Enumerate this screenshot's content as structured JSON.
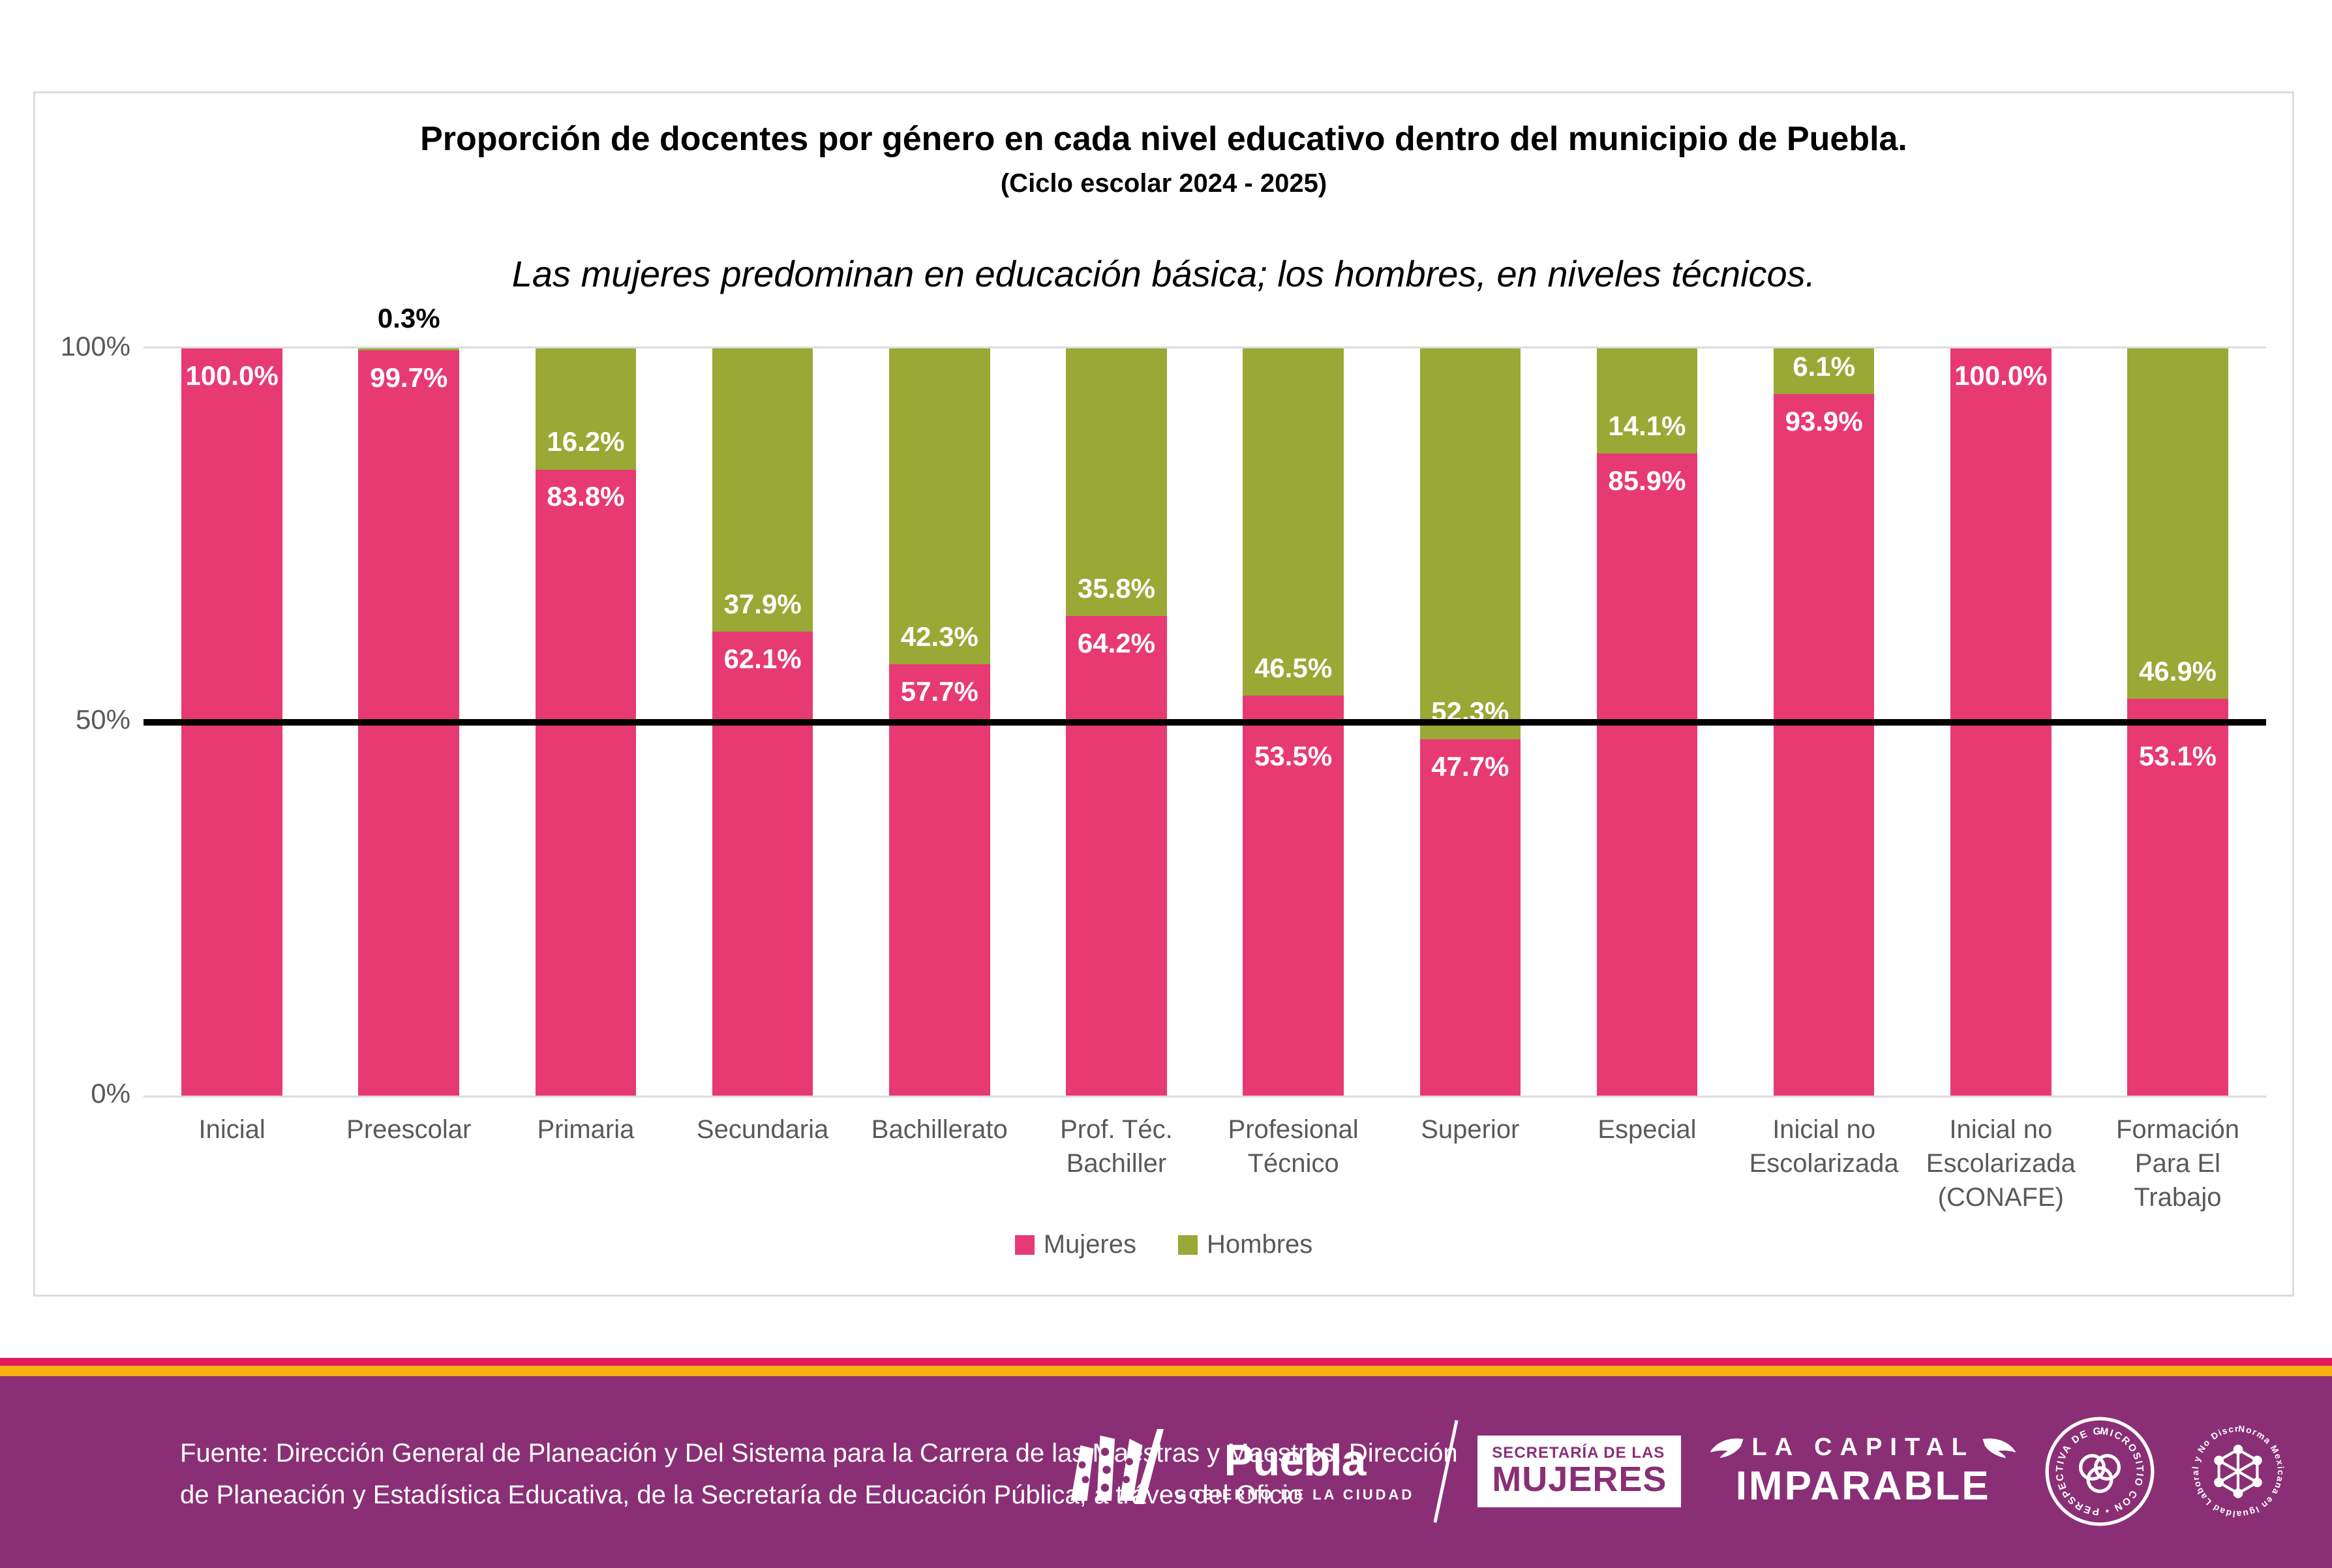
{
  "chart_data": {
    "type": "bar",
    "stacked": true,
    "orientation": "vertical",
    "title": "Proporción de docentes por género en cada nivel educativo dentro del municipio de Puebla.",
    "subtitle": "(Ciclo escolar 2024 - 2025)",
    "annotation": "Las mujeres predominan en educación básica; los hombres, en niveles técnicos.",
    "categories": [
      "Inicial",
      "Preescolar",
      "Primaria",
      "Secundaria",
      "Bachillerato",
      "Prof. Téc.\nBachiller",
      "Profesional\nTécnico",
      "Superior",
      "Especial",
      "Inicial no\nEscolarizada",
      "Inicial no\nEscolarizada\n(CONAFE)",
      "Formación\nPara El\nTrabajo"
    ],
    "series": [
      {
        "name": "Mujeres",
        "color": "#E83A72",
        "values": [
          100.0,
          99.7,
          83.8,
          62.1,
          57.7,
          64.2,
          53.5,
          47.7,
          85.9,
          93.9,
          100.0,
          53.1
        ]
      },
      {
        "name": "Hombres",
        "color": "#9AA835",
        "values": [
          0.0,
          0.3,
          16.2,
          37.9,
          42.3,
          35.8,
          46.5,
          52.3,
          14.1,
          6.1,
          0.0,
          46.9
        ]
      }
    ],
    "value_suffix": "%",
    "ylim": [
      0,
      100
    ],
    "y_ticks": [
      "100%",
      "50%",
      "0%"
    ],
    "grid": "top-and-bottom-lines-only",
    "reference_line": {
      "value": 50,
      "color": "#000000"
    },
    "legend": {
      "position": "bottom",
      "items": [
        "Mujeres",
        "Hombres"
      ]
    }
  },
  "footer": {
    "source_line1": "Fuente: Dirección General de Planeación y Del Sistema para la Carrera de las Maestras y Maestros, Dirección",
    "source_line2": "de Planeación y Estadística Educativa, de la Secretaría de Educación Pública, a tráves del Oficio",
    "logos": {
      "puebla_name": "Puebla",
      "puebla_tagline": "GOBIERNO DE LA CIUDAD",
      "mujeres_secretaria": "SECRETARÍA DE LAS",
      "mujeres_title": "MUJERES",
      "capital_line1": "LA CAPITAL",
      "capital_line2": "IMPARABLE",
      "badge_perspectiva": "MICROSITIO CON • PERSPECTIVA DE GÉNERO •",
      "badge_norma": "Norma Mexicana en Igualdad Laboral y No Discriminación •"
    }
  },
  "colors": {
    "mujeres": "#E83A72",
    "hombres": "#9AA835",
    "footer_purple": "#8A2F76",
    "stripe_pink": "#E11A60",
    "stripe_orange": "#FCAF13",
    "grid_line": "#DCDCDC",
    "axis_text": "#595959",
    "reference_line": "#000000",
    "data_label": "#FFFFFF",
    "outside_label": "#000000"
  }
}
